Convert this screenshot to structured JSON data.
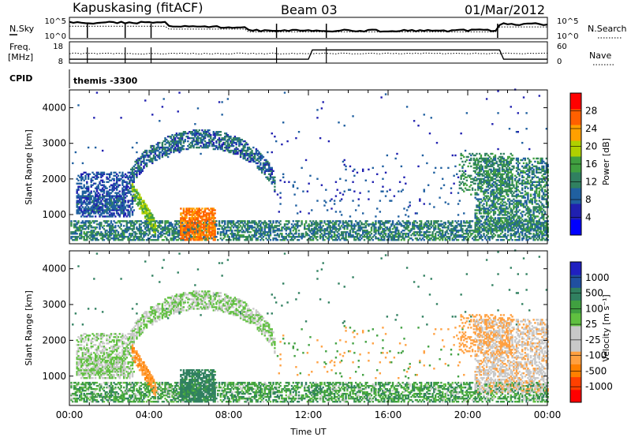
{
  "header": {
    "title": "Kapuskasing (fitACF)",
    "beam": "Beam 03",
    "date": "01/Mar/2012"
  },
  "top_panels": {
    "nsky_label": "N.Sky",
    "nsky_ticks": [
      "10^5",
      "10^0"
    ],
    "nsearch_label": "N.Search",
    "nsearch_ticks": [
      "10^5",
      "10^0"
    ],
    "freq_label_1": "Freq.",
    "freq_label_2": "[MHz]",
    "freq_ticks": [
      "18",
      "8"
    ],
    "nave_label": "Nave",
    "nave_ticks": [
      "60",
      "0"
    ],
    "cpid_label": "CPID",
    "cpid_value": "themis -3300"
  },
  "chart_data": [
    {
      "type": "heatmap",
      "panel": "power",
      "ylabel": "Slant Range [km]",
      "xlabel": "",
      "x_ticks": [
        "00:00",
        "04:00",
        "08:00",
        "12:00",
        "16:00",
        "20:00",
        "00:00"
      ],
      "xlim_hours": [
        0,
        24
      ],
      "ylim_km": [
        180,
        4500
      ],
      "y_ticks": [
        1000,
        2000,
        3000,
        4000
      ],
      "colorbar": {
        "label": "Power [dB]",
        "ticks": [
          "28",
          "24",
          "20",
          "16",
          "12",
          "8",
          "4"
        ],
        "colors": [
          "#0000ff",
          "#2020b0",
          "#2060a0",
          "#308060",
          "#40a040",
          "#b0d000",
          "#ffa000",
          "#ff6000",
          "#ff0000"
        ]
      },
      "features": [
        {
          "name": "near-range band",
          "x_hours": [
            0,
            24
          ],
          "range_km": [
            250,
            800
          ],
          "level_db": 10
        },
        {
          "name": "arc",
          "x_hours": [
            0.3,
            10.3
          ],
          "range_km": [
            1000,
            3100
          ],
          "level_db": 6
        },
        {
          "name": "strong echoes",
          "x_hours": [
            5.5,
            7.3
          ],
          "range_km": [
            250,
            1200
          ],
          "level_db": 28
        },
        {
          "name": "diagonal echoes",
          "x_hours": [
            3.1,
            4.4
          ],
          "range_km": [
            500,
            1700
          ],
          "level_db": 18
        },
        {
          "name": "evening patch",
          "x_hours": [
            20.3,
            24
          ],
          "range_km": [
            500,
            2600
          ],
          "level_db": 14
        }
      ]
    },
    {
      "type": "heatmap",
      "panel": "velocity",
      "ylabel": "Slant Range [km]",
      "xlabel": "Time UT",
      "x_ticks": [
        "00:00",
        "04:00",
        "08:00",
        "12:00",
        "16:00",
        "20:00",
        "00:00"
      ],
      "xlim_hours": [
        0,
        24
      ],
      "ylim_km": [
        180,
        4500
      ],
      "y_ticks": [
        1000,
        2000,
        3000,
        4000
      ],
      "colorbar": {
        "label": "Velocity [m s⁻¹]",
        "ticks": [
          "1000",
          "500",
          "100",
          "25",
          "-25",
          "-100",
          "-500",
          "-1000"
        ],
        "colors": [
          "#ff0000",
          "#ff4000",
          "#ff8000",
          "#ffa040",
          "#c8c8c8",
          "#c8c8c8",
          "#60c040",
          "#40a040",
          "#308060",
          "#2050a0",
          "#2020c0"
        ]
      },
      "features": [
        {
          "name": "ground scatter arc",
          "x_hours": [
            0.3,
            10.3
          ],
          "range_km": [
            1000,
            3200
          ],
          "velocity_ms": 0
        },
        {
          "name": "near-range band",
          "x_hours": [
            0,
            24
          ],
          "range_km": [
            250,
            800
          ],
          "velocity_ms": 100
        },
        {
          "name": "eastward flows",
          "x_hours": [
            3.1,
            4.4
          ],
          "range_km": [
            500,
            1700
          ],
          "velocity_ms": -300
        },
        {
          "name": "evening flows",
          "x_hours": [
            19.5,
            22.2
          ],
          "range_km": [
            1500,
            2700
          ],
          "velocity_ms": -300
        }
      ]
    }
  ]
}
